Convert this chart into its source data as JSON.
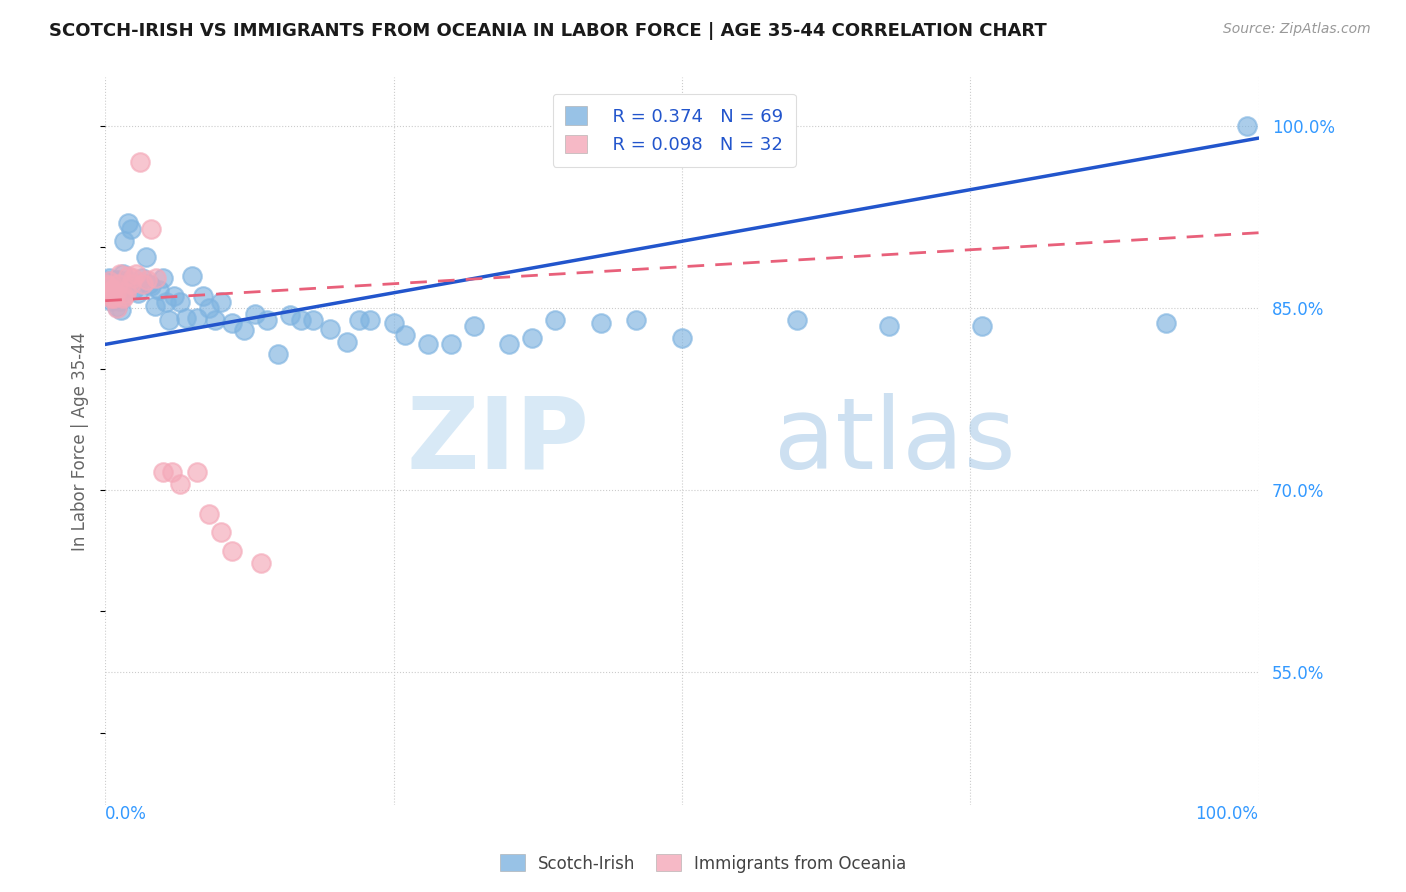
{
  "title": "SCOTCH-IRISH VS IMMIGRANTS FROM OCEANIA IN LABOR FORCE | AGE 35-44 CORRELATION CHART",
  "source": "Source: ZipAtlas.com",
  "ylabel": "In Labor Force | Age 35-44",
  "blue_color": "#7EB3E0",
  "pink_color": "#F4A8B8",
  "blue_line_color": "#2255CC",
  "pink_line_color": "#E8607A",
  "legend_blue_R": "R = 0.374",
  "legend_blue_N": "N = 69",
  "legend_pink_R": "R = 0.098",
  "legend_pink_N": "N = 32",
  "label_blue": "Scotch-Irish",
  "label_pink": "Immigrants from Oceania",
  "watermark_zip": "ZIP",
  "watermark_atlas": "atlas",
  "xlim": [
    0.0,
    1.0
  ],
  "ylim": [
    0.44,
    1.04
  ],
  "yticks": [
    1.0,
    0.85,
    0.7,
    0.55
  ],
  "ytick_labels": [
    "100.0%",
    "85.0%",
    "70.0%",
    "55.0%"
  ],
  "grid_color": "#CCCCCC",
  "axis_label_color": "#3399FF",
  "blue_x": [
    0.001,
    0.002,
    0.003,
    0.003,
    0.004,
    0.005,
    0.005,
    0.006,
    0.007,
    0.008,
    0.009,
    0.01,
    0.011,
    0.012,
    0.013,
    0.014,
    0.015,
    0.016,
    0.018,
    0.02,
    0.022,
    0.025,
    0.028,
    0.032,
    0.035,
    0.038,
    0.04,
    0.043,
    0.047,
    0.05,
    0.053,
    0.055,
    0.06,
    0.065,
    0.07,
    0.075,
    0.08,
    0.085,
    0.09,
    0.095,
    0.1,
    0.11,
    0.12,
    0.13,
    0.14,
    0.15,
    0.16,
    0.17,
    0.18,
    0.195,
    0.21,
    0.22,
    0.23,
    0.25,
    0.26,
    0.28,
    0.3,
    0.32,
    0.35,
    0.37,
    0.39,
    0.43,
    0.46,
    0.5,
    0.6,
    0.68,
    0.76,
    0.92,
    0.99
  ],
  "blue_y": [
    0.87,
    0.872,
    0.865,
    0.875,
    0.868,
    0.86,
    0.856,
    0.863,
    0.857,
    0.866,
    0.873,
    0.851,
    0.859,
    0.873,
    0.856,
    0.848,
    0.878,
    0.905,
    0.872,
    0.92,
    0.915,
    0.866,
    0.862,
    0.875,
    0.892,
    0.87,
    0.868,
    0.852,
    0.865,
    0.875,
    0.855,
    0.84,
    0.86,
    0.855,
    0.842,
    0.876,
    0.842,
    0.86,
    0.85,
    0.84,
    0.855,
    0.838,
    0.832,
    0.845,
    0.84,
    0.812,
    0.844,
    0.84,
    0.84,
    0.833,
    0.822,
    0.84,
    0.84,
    0.838,
    0.828,
    0.82,
    0.82,
    0.835,
    0.82,
    0.825,
    0.84,
    0.838,
    0.84,
    0.825,
    0.84,
    0.835,
    0.835,
    0.838,
    1.0
  ],
  "pink_x": [
    0.001,
    0.002,
    0.003,
    0.004,
    0.005,
    0.006,
    0.007,
    0.008,
    0.009,
    0.01,
    0.011,
    0.013,
    0.015,
    0.016,
    0.018,
    0.02,
    0.022,
    0.024,
    0.027,
    0.03,
    0.033,
    0.036,
    0.04,
    0.044,
    0.05,
    0.058,
    0.065,
    0.08,
    0.09,
    0.1,
    0.11,
    0.135
  ],
  "pink_y": [
    0.87,
    0.868,
    0.872,
    0.86,
    0.858,
    0.864,
    0.866,
    0.858,
    0.862,
    0.85,
    0.87,
    0.878,
    0.858,
    0.86,
    0.862,
    0.876,
    0.87,
    0.875,
    0.878,
    0.97,
    0.87,
    0.873,
    0.915,
    0.875,
    0.715,
    0.715,
    0.705,
    0.715,
    0.68,
    0.665,
    0.65,
    0.64
  ],
  "blue_line_x": [
    0.0,
    1.0
  ],
  "blue_line_y": [
    0.82,
    0.99
  ],
  "pink_line_x": [
    0.0,
    1.0
  ],
  "pink_line_y": [
    0.856,
    0.912
  ]
}
